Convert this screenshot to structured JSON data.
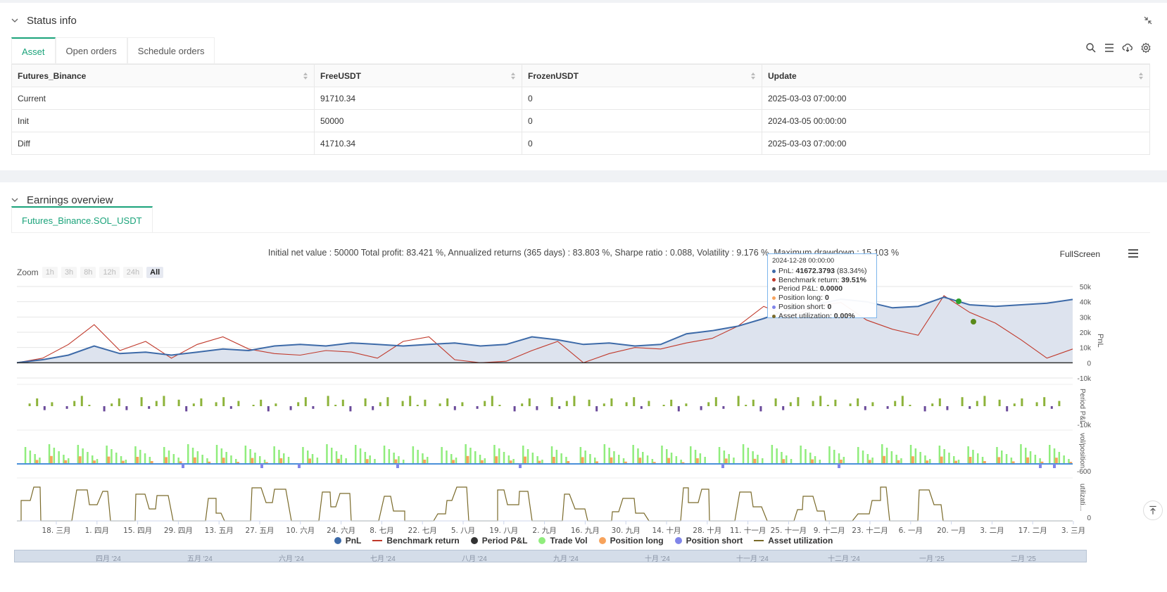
{
  "status": {
    "title": "Status info",
    "tabs": [
      "Asset",
      "Open orders",
      "Schedule orders"
    ],
    "columns": [
      "Futures_Binance",
      "FreeUSDT",
      "FrozenUSDT",
      "Update"
    ],
    "rows": [
      {
        "label": "Current",
        "free": "91710.34",
        "frozen": "0",
        "update": "2025-03-03 07:00:00"
      },
      {
        "label": "Init",
        "free": "50000",
        "frozen": "0",
        "update": "2024-03-05 00:00:00"
      },
      {
        "label": "Diff",
        "free": "41710.34",
        "frozen": "0",
        "update": "2025-03-03 07:00:00"
      }
    ]
  },
  "earnings": {
    "title": "Earnings overview",
    "tab": "Futures_Binance.SOL_USDT",
    "summary": "Initial net value : 50000 Total profit: 83.421 %, Annualized returns (365 days) : 83.803 %, Sharpe ratio : 0.088, Volatility : 9.176 %, Maximum drawdown : 15.103 %",
    "fullscreen": "FullScreen",
    "zoom_label": "Zoom",
    "zoom_buttons": [
      "1h",
      "3h",
      "8h",
      "12h",
      "24h",
      "All"
    ],
    "tooltip": {
      "date": "2024-12-28 00:00:00",
      "pnl_label": "PnL: ",
      "pnl_value": "41672.3793",
      "pnl_pct": " (83.34%)",
      "bench_label": "Benchmark return: ",
      "bench_value": "39.51%",
      "period_label": "Period P&L: ",
      "period_value": "0.0000",
      "long_label": "Position long: ",
      "long_value": "0",
      "short_label": "Position short: ",
      "short_value": "0",
      "util_label": "Asset utilization: ",
      "util_value": "0.00%"
    },
    "legend": [
      "PnL",
      "Benchmark return",
      "Period P&L",
      "Trade Vol",
      "Position long",
      "Position short",
      "Asset utilization"
    ],
    "navigator_labels": [
      "四月 '24",
      "五月 '24",
      "六月 '24",
      "七月 '24",
      "八月 '24",
      "九月 '24",
      "十月 '24",
      "十一月 '24",
      "十二月 '24",
      "一月 '25",
      "二月 '25"
    ]
  },
  "colors": {
    "pnl": "#3d6aa8",
    "benchmark": "#c0392b",
    "period": "#333333",
    "trade_vol": "#90ed7d",
    "long": "#f7a35c",
    "short": "#8085e9",
    "util": "#7a6a2a",
    "accent": "#1aa37a"
  },
  "chart_data": {
    "type": "line",
    "x_ticks": [
      "18. 三月",
      "1. 四月",
      "15. 四月",
      "29. 四月",
      "13. 五月",
      "27. 五月",
      "10. 六月",
      "24. 六月",
      "8. 七月",
      "22. 七月",
      "5. 八月",
      "19. 八月",
      "2. 九月",
      "16. 九月",
      "30. 九月",
      "14. 十月",
      "28. 十月",
      "11. 十一月",
      "25. 十一月",
      "9. 十二月",
      "23. 十二月",
      "6. 一月",
      "20. 一月",
      "3. 二月",
      "17. 二月",
      "3. 三月"
    ],
    "y_ticks_pnl": [
      "50k",
      "40k",
      "30k",
      "20k",
      "10k",
      "0",
      "-10k"
    ],
    "y_label_pnl": "PnL",
    "y_tick_period": "-10k",
    "y_label_period": "Period P&L",
    "y_tick_vol": "-600",
    "y_label_vol": "vol/position",
    "y_tick_util": "0",
    "y_label_util": "utilizati...",
    "ylim": [
      -10000,
      50000
    ],
    "series": [
      {
        "name": "PnL",
        "values": [
          0,
          2000,
          5000,
          11000,
          6000,
          7000,
          5000,
          7000,
          9000,
          8000,
          11000,
          12000,
          11000,
          13000,
          12000,
          11000,
          12000,
          13000,
          11000,
          12000,
          17000,
          15000,
          12000,
          13000,
          11000,
          12000,
          19000,
          21000,
          24000,
          29000,
          35000,
          38000,
          41672,
          40000,
          36000,
          37000,
          43000,
          38000,
          37000,
          38000,
          39000,
          41500
        ]
      },
      {
        "name": "Benchmark return",
        "values": [
          0,
          3000,
          12000,
          25000,
          8000,
          14000,
          3000,
          12000,
          17000,
          9000,
          6000,
          5000,
          8000,
          7000,
          3000,
          14000,
          17000,
          2000,
          0,
          1000,
          8000,
          14000,
          0,
          6000,
          10000,
          9000,
          13000,
          16000,
          24000,
          37000,
          30000,
          37000,
          39510,
          28000,
          22000,
          18000,
          44000,
          33000,
          26000,
          15000,
          3000,
          9000
        ]
      }
    ]
  }
}
